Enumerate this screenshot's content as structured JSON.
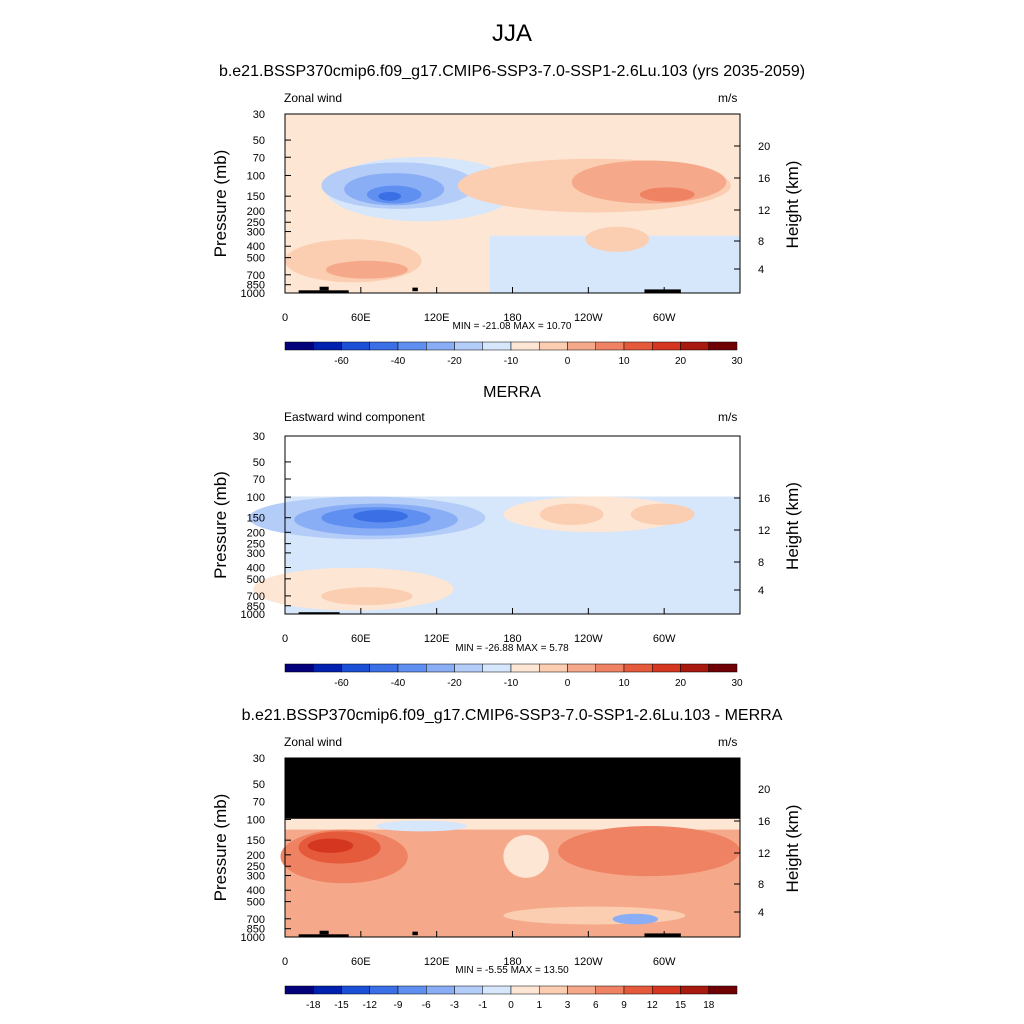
{
  "main_title": "JJA",
  "chart_data": [
    {
      "type": "heatmap",
      "title": "b.e21.BSSP370cmip6.f09_g17.CMIP6-SSP3-7.0-SSP1-2.6Lu.103 (yrs 2035-2059)",
      "left_label": "Zonal wind",
      "units": "m/s",
      "ylabel": "Pressure (mb)",
      "y2label": "Height (km)",
      "pressure_ticks": [
        30,
        50,
        70,
        100,
        150,
        200,
        250,
        300,
        400,
        500,
        700,
        850,
        1000
      ],
      "height_ticks": [
        4,
        8,
        12,
        16,
        20
      ],
      "x_ticks": [
        "0",
        "60E",
        "120E",
        "180",
        "120W",
        "60W"
      ],
      "stats": "MIN = -21.08  MAX =  10.70",
      "colorbar_labels": [
        "-60",
        "-40",
        "-20",
        "-10",
        "0",
        "10",
        "20",
        "30"
      ]
    },
    {
      "type": "heatmap",
      "title": "MERRA",
      "left_label": "Eastward wind component",
      "units": "m/s",
      "ylabel": "Pressure (mb)",
      "y2label": "Height (km)",
      "pressure_ticks": [
        30,
        50,
        70,
        100,
        150,
        200,
        250,
        300,
        400,
        500,
        700,
        850,
        1000
      ],
      "height_ticks": [
        4,
        8,
        12,
        16
      ],
      "x_ticks": [
        "0",
        "60E",
        "120E",
        "180",
        "120W",
        "60W"
      ],
      "stats": "MIN = -26.88  MAX =   5.78",
      "colorbar_labels": [
        "-60",
        "-40",
        "-20",
        "-10",
        "0",
        "10",
        "20",
        "30"
      ]
    },
    {
      "type": "heatmap",
      "title": "b.e21.BSSP370cmip6.f09_g17.CMIP6-SSP3-7.0-SSP1-2.6Lu.103 - MERRA",
      "left_label": "Zonal wind",
      "units": "m/s",
      "ylabel": "Pressure (mb)",
      "y2label": "Height (km)",
      "pressure_ticks": [
        30,
        50,
        70,
        100,
        150,
        200,
        250,
        300,
        400,
        500,
        700,
        850,
        1000
      ],
      "height_ticks": [
        4,
        8,
        12,
        16,
        20
      ],
      "x_ticks": [
        "0",
        "60E",
        "120E",
        "180",
        "120W",
        "60W"
      ],
      "stats": "MIN =  -5.55  MAX =  13.50",
      "colorbar_labels": [
        "-18",
        "-15",
        "-12",
        "-9",
        "-6",
        "-3",
        "-1",
        "0",
        "1",
        "3",
        "6",
        "9",
        "12",
        "15",
        "18"
      ]
    }
  ],
  "colorbar_colors": [
    "#02007a",
    "#0020b0",
    "#1a4fd6",
    "#3a6fe6",
    "#5f8ff0",
    "#8aaef5",
    "#b4ccf8",
    "#d6e6fb",
    "#fde6d3",
    "#fbcdb1",
    "#f5a98a",
    "#ee8262",
    "#e65a3c",
    "#d4361f",
    "#a8190f",
    "#6e0006"
  ],
  "palette": {
    "blue_light": "#d6e6fb",
    "blue_2": "#b4ccf8",
    "blue_3": "#8aaef5",
    "blue_4": "#5f8ff0",
    "blue_5": "#3a6fe6",
    "peach": "#fde6d3",
    "orange_1": "#fbcdb1",
    "orange_2": "#f5a98a",
    "orange_3": "#ee8262",
    "orange_4": "#e65a3c",
    "red_1": "#d4361f"
  }
}
